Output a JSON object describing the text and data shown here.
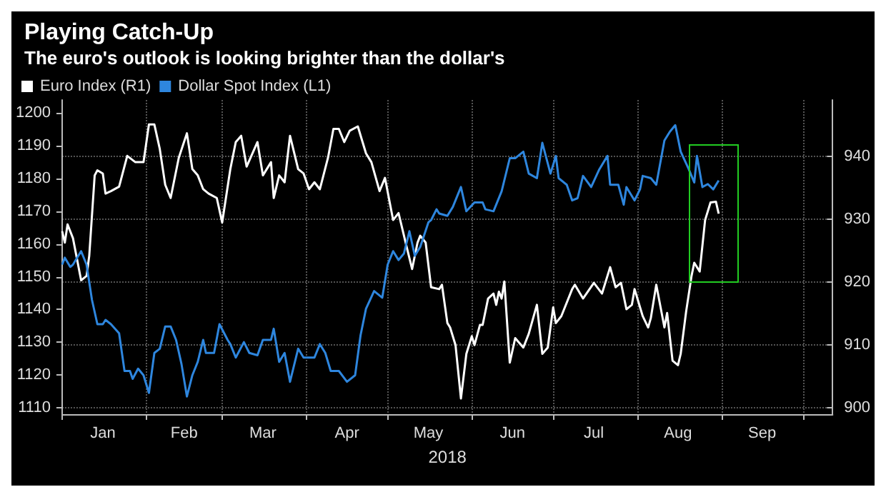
{
  "chart_data": {
    "type": "line",
    "title": "Playing Catch-Up",
    "subtitle": "The euro's outlook is looking brighter than the dollar's",
    "xlabel": "2018",
    "legend": "top left",
    "grid": true,
    "marker": "none",
    "line_style": "solid",
    "xlim": [
      "2018-01-01",
      "2018-10-12"
    ],
    "xticks": [
      {
        "value": "2018-01-01",
        "label": null
      },
      {
        "value": "2018-01-16",
        "label": "Jan"
      },
      {
        "value": "2018-02-01",
        "label": null
      },
      {
        "value": "2018-02-15",
        "label": "Feb"
      },
      {
        "value": "2018-03-01",
        "label": null
      },
      {
        "value": "2018-03-16",
        "label": "Mar"
      },
      {
        "value": "2018-04-01",
        "label": null
      },
      {
        "value": "2018-04-16",
        "label": "Apr"
      },
      {
        "value": "2018-05-01",
        "label": null
      },
      {
        "value": "2018-05-16",
        "label": "May"
      },
      {
        "value": "2018-06-01",
        "label": null
      },
      {
        "value": "2018-06-16",
        "label": "Jun"
      },
      {
        "value": "2018-07-01",
        "label": null
      },
      {
        "value": "2018-07-16",
        "label": "Jul"
      },
      {
        "value": "2018-08-01",
        "label": null
      },
      {
        "value": "2018-08-16",
        "label": "Aug"
      },
      {
        "value": "2018-09-01",
        "label": null
      },
      {
        "value": "2018-09-16",
        "label": "Sep"
      },
      {
        "value": "2018-10-01",
        "label": null
      }
    ],
    "ylim": [
      1108,
      1204
    ],
    "yticks": [
      1110,
      1120,
      1130,
      1140,
      1150,
      1160,
      1170,
      1180,
      1190,
      1200
    ],
    "y2lim": [
      899,
      949
    ],
    "y2ticks": [
      900,
      910,
      920,
      930,
      940
    ],
    "series": [
      {
        "name": "Euro Index (R1)",
        "color": "#ffffff",
        "axis": "y2",
        "x": [
          "2018-01-01",
          "2018-01-02",
          "2018-01-03",
          "2018-01-05",
          "2018-01-08",
          "2018-01-10",
          "2018-01-11",
          "2018-01-13",
          "2018-01-14",
          "2018-01-16",
          "2018-01-17",
          "2018-01-19",
          "2018-01-22",
          "2018-01-25",
          "2018-01-28",
          "2018-01-31",
          "2018-02-02",
          "2018-02-04",
          "2018-02-06",
          "2018-02-08",
          "2018-02-10",
          "2018-02-13",
          "2018-02-16",
          "2018-02-18",
          "2018-02-20",
          "2018-02-22",
          "2018-02-24",
          "2018-02-27",
          "2018-03-01",
          "2018-03-04",
          "2018-03-06",
          "2018-03-08",
          "2018-03-10",
          "2018-03-14",
          "2018-03-16",
          "2018-03-19",
          "2018-03-20",
          "2018-03-22",
          "2018-03-24",
          "2018-03-26",
          "2018-03-29",
          "2018-03-31",
          "2018-04-02",
          "2018-04-04",
          "2018-04-06",
          "2018-04-09",
          "2018-04-11",
          "2018-04-13",
          "2018-04-15",
          "2018-04-17",
          "2018-04-20",
          "2018-04-23",
          "2018-04-25",
          "2018-04-28",
          "2018-04-30",
          "2018-05-03",
          "2018-05-05",
          "2018-05-08",
          "2018-05-10",
          "2018-05-12",
          "2018-05-13",
          "2018-05-15",
          "2018-05-17",
          "2018-05-20",
          "2018-05-21",
          "2018-05-23",
          "2018-05-24",
          "2018-05-26",
          "2018-05-28",
          "2018-05-30",
          "2018-06-01",
          "2018-06-02",
          "2018-06-04",
          "2018-06-05",
          "2018-06-07",
          "2018-06-09",
          "2018-06-10",
          "2018-06-11",
          "2018-06-12",
          "2018-06-13",
          "2018-06-15",
          "2018-06-17",
          "2018-06-20",
          "2018-06-22",
          "2018-06-25",
          "2018-06-27",
          "2018-06-29",
          "2018-07-01",
          "2018-07-02",
          "2018-07-04",
          "2018-07-08",
          "2018-07-09",
          "2018-07-12",
          "2018-07-16",
          "2018-07-19",
          "2018-07-22",
          "2018-07-24",
          "2018-07-26",
          "2018-07-28",
          "2018-07-30",
          "2018-07-31",
          "2018-08-03",
          "2018-08-05",
          "2018-08-06",
          "2018-08-08",
          "2018-08-11",
          "2018-08-12",
          "2018-08-14",
          "2018-08-16",
          "2018-08-17",
          "2018-08-19",
          "2018-08-21",
          "2018-08-22",
          "2018-08-24",
          "2018-08-26",
          "2018-08-28",
          "2018-08-30",
          "2018-08-31"
        ],
        "values": [
          928.1,
          926.3,
          929.2,
          927.0,
          920.3,
          921.0,
          924.2,
          937.0,
          937.8,
          937.3,
          934.1,
          934.5,
          935.2,
          940.1,
          939.1,
          939.1,
          945.1,
          945.1,
          941.2,
          935.5,
          933.4,
          939.8,
          943.7,
          938.0,
          937.0,
          934.8,
          934.1,
          933.4,
          929.5,
          938.0,
          942.3,
          943.3,
          938.4,
          942.3,
          937.0,
          939.1,
          933.4,
          937.0,
          935.9,
          943.3,
          938.0,
          937.3,
          934.8,
          935.9,
          934.8,
          939.8,
          944.4,
          944.4,
          942.3,
          944.1,
          944.8,
          940.5,
          939.1,
          934.5,
          936.6,
          929.9,
          931.0,
          925.6,
          922.1,
          926.3,
          927.4,
          926.3,
          919.2,
          918.9,
          919.6,
          913.5,
          912.8,
          910.0,
          901.5,
          908.6,
          911.4,
          910.0,
          913.2,
          913.2,
          917.4,
          918.2,
          916.4,
          918.5,
          917.4,
          920.1,
          907.2,
          911.1,
          909.6,
          911.8,
          916.4,
          908.6,
          909.6,
          916.0,
          913.5,
          914.6,
          918.9,
          919.6,
          917.4,
          919.9,
          918.2,
          922.4,
          919.2,
          919.9,
          915.7,
          916.4,
          918.9,
          914.6,
          912.8,
          914.3,
          919.6,
          912.8,
          915.1,
          907.5,
          906.8,
          908.6,
          915.3,
          921.0,
          923.1,
          921.7,
          929.9,
          932.7,
          932.8,
          930.9
        ]
      },
      {
        "name": "Dollar Spot Index (L1)",
        "color": "#2e86de",
        "x": [
          "2018-01-01",
          "2018-01-02",
          "2018-01-04",
          "2018-01-05",
          "2018-01-08",
          "2018-01-10",
          "2018-01-12",
          "2018-01-14",
          "2018-01-16",
          "2018-01-17",
          "2018-01-19",
          "2018-01-22",
          "2018-01-24",
          "2018-01-26",
          "2018-01-27",
          "2018-01-29",
          "2018-01-31",
          "2018-02-02",
          "2018-02-04",
          "2018-02-06",
          "2018-02-08",
          "2018-02-10",
          "2018-02-12",
          "2018-02-14",
          "2018-02-16",
          "2018-02-18",
          "2018-02-20",
          "2018-02-22",
          "2018-02-23",
          "2018-02-26",
          "2018-02-28",
          "2018-03-03",
          "2018-03-04",
          "2018-03-06",
          "2018-03-09",
          "2018-03-11",
          "2018-03-14",
          "2018-03-16",
          "2018-03-19",
          "2018-03-20",
          "2018-03-22",
          "2018-03-24",
          "2018-03-26",
          "2018-03-29",
          "2018-03-31",
          "2018-04-04",
          "2018-04-06",
          "2018-04-08",
          "2018-04-10",
          "2018-04-13",
          "2018-04-16",
          "2018-04-19",
          "2018-04-21",
          "2018-04-23",
          "2018-04-26",
          "2018-04-29",
          "2018-05-01",
          "2018-05-03",
          "2018-05-05",
          "2018-05-07",
          "2018-05-09",
          "2018-05-11",
          "2018-05-13",
          "2018-05-16",
          "2018-05-17",
          "2018-05-19",
          "2018-05-20",
          "2018-05-23",
          "2018-05-25",
          "2018-05-28",
          "2018-05-30",
          "2018-06-02",
          "2018-06-05",
          "2018-06-06",
          "2018-06-09",
          "2018-06-12",
          "2018-06-15",
          "2018-06-17",
          "2018-06-20",
          "2018-06-22",
          "2018-06-25",
          "2018-06-27",
          "2018-06-30",
          "2018-07-02",
          "2018-07-03",
          "2018-07-06",
          "2018-07-08",
          "2018-07-10",
          "2018-07-12",
          "2018-07-15",
          "2018-07-18",
          "2018-07-21",
          "2018-07-22",
          "2018-07-25",
          "2018-07-27",
          "2018-07-28",
          "2018-07-31",
          "2018-08-02",
          "2018-08-03",
          "2018-08-06",
          "2018-08-08",
          "2018-08-11",
          "2018-08-13",
          "2018-08-15",
          "2018-08-17",
          "2018-08-20",
          "2018-08-22",
          "2018-08-23",
          "2018-08-25",
          "2018-08-27",
          "2018-08-29",
          "2018-08-31"
        ],
        "values": [
          1153.7,
          1155.8,
          1153.0,
          1153.7,
          1157.8,
          1153.7,
          1142.9,
          1135.5,
          1135.5,
          1136.8,
          1135.5,
          1132.7,
          1121.2,
          1121.2,
          1118.8,
          1121.9,
          1119.9,
          1114.5,
          1126.7,
          1128.0,
          1134.8,
          1134.8,
          1130.7,
          1123.3,
          1113.4,
          1119.9,
          1124.0,
          1130.7,
          1126.7,
          1126.7,
          1135.5,
          1130.7,
          1129.4,
          1125.3,
          1130.0,
          1126.7,
          1126.0,
          1130.7,
          1130.7,
          1134.1,
          1124.0,
          1126.7,
          1117.9,
          1128.0,
          1125.3,
          1125.3,
          1129.4,
          1126.7,
          1121.2,
          1121.2,
          1117.9,
          1119.9,
          1132.1,
          1140.2,
          1145.6,
          1143.6,
          1153.7,
          1157.8,
          1155.1,
          1157.1,
          1163.9,
          1156.4,
          1159.1,
          1166.6,
          1167.3,
          1170.6,
          1169.3,
          1168.6,
          1171.3,
          1177.4,
          1170.0,
          1172.7,
          1172.7,
          1170.6,
          1170.0,
          1176.1,
          1186.2,
          1186.2,
          1188.2,
          1181.5,
          1180.1,
          1190.9,
          1181.5,
          1186.9,
          1180.1,
          1178.1,
          1173.3,
          1174.0,
          1180.8,
          1177.4,
          1182.8,
          1186.9,
          1178.1,
          1178.1,
          1172.0,
          1177.4,
          1173.3,
          1176.7,
          1180.8,
          1180.1,
          1178.1,
          1191.6,
          1194.3,
          1196.3,
          1188.2,
          1182.8,
          1178.8,
          1186.9,
          1177.4,
          1178.3,
          1176.7,
          1179.4
        ]
      }
    ]
  }
}
